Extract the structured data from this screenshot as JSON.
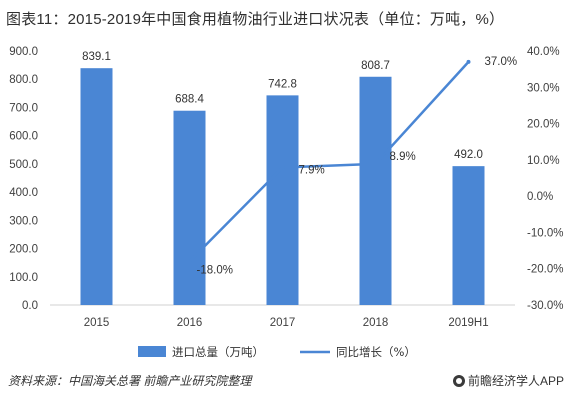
{
  "header": {
    "title": "图表11：2015-2019年中国食用植物油行业进口状况表（单位：万吨，%）"
  },
  "footer": {
    "source": "资料来源：中国海关总署 前瞻产业研究院整理",
    "brand": "前瞻经济学人APP",
    "brand_icon": "brand-logo-icon"
  },
  "chart_data": {
    "type": "bar",
    "title": "图表11：2015-2019年中国食用植物油行业进口状况表（单位：万吨，%）",
    "categories": [
      "2015",
      "2016",
      "2017",
      "2018",
      "2019H1"
    ],
    "series": [
      {
        "name": "进口总量（万吨）",
        "type": "bar",
        "axis": "left",
        "values": [
          839.1,
          688.4,
          742.8,
          808.7,
          492.0
        ],
        "labels": [
          "839.1",
          "688.4",
          "742.8",
          "808.7",
          "492.0"
        ],
        "color": "#4a86d4"
      },
      {
        "name": "同比增长（%）",
        "type": "line",
        "axis": "right",
        "values": [
          null,
          -18.0,
          7.9,
          8.9,
          37.0
        ],
        "labels": [
          "",
          "-18.0%",
          "7.9%",
          "8.9%",
          "37.0%"
        ],
        "color": "#4a86d4"
      }
    ],
    "y_left": {
      "min": 0,
      "max": 900,
      "ticks": [
        "0.0",
        "100.0",
        "200.0",
        "300.0",
        "400.0",
        "500.0",
        "600.0",
        "700.0",
        "800.0",
        "900.0"
      ]
    },
    "y_right": {
      "min": -30,
      "max": 40,
      "ticks": [
        "-30.0%",
        "-20.0%",
        "-10.0%",
        "0.0%",
        "10.0%",
        "20.0%",
        "30.0%",
        "40.0%"
      ]
    },
    "grid": false,
    "legend": "bottom-center"
  }
}
